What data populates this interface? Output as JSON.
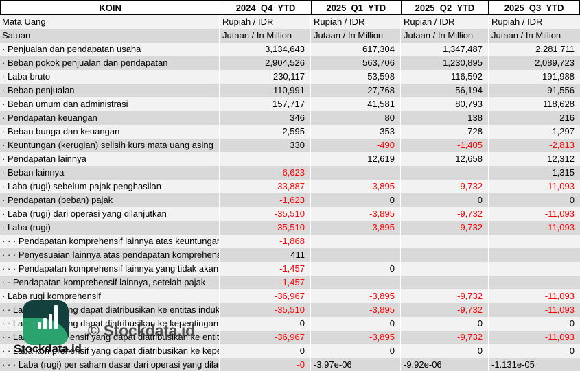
{
  "table": {
    "header": [
      "KOIN",
      "2024_Q4_YTD",
      "2025_Q1_YTD",
      "2025_Q2_YTD",
      "2025_Q3_YTD"
    ],
    "rows": [
      {
        "label": "Mata Uang",
        "type": "text",
        "cells": [
          "Rupiah / IDR",
          "Rupiah / IDR",
          "Rupiah / IDR",
          "Rupiah / IDR"
        ]
      },
      {
        "label": "Satuan",
        "type": "text",
        "cells": [
          "Jutaan / In Million",
          "Jutaan / In Million",
          "Jutaan / In Million",
          "Jutaan / In Million"
        ]
      },
      {
        "label": "· Penjualan dan pendapatan usaha",
        "cells": [
          "3,134,643",
          "617,304",
          "1,347,487",
          "2,281,711"
        ]
      },
      {
        "label": "· Beban pokok penjualan dan pendapatan",
        "cells": [
          "2,904,526",
          "563,706",
          "1,230,895",
          "2,089,723"
        ]
      },
      {
        "label": "· Laba bruto",
        "cells": [
          "230,117",
          "53,598",
          "116,592",
          "191,988"
        ]
      },
      {
        "label": "· Beban penjualan",
        "cells": [
          "110,991",
          "27,768",
          "56,194",
          "91,556"
        ]
      },
      {
        "label": "· Beban umum dan administrasi",
        "cells": [
          "157,717",
          "41,581",
          "80,793",
          "118,628"
        ]
      },
      {
        "label": "· Pendapatan keuangan",
        "cells": [
          "346",
          "80",
          "138",
          "216"
        ]
      },
      {
        "label": "· Beban bunga dan keuangan",
        "cells": [
          "2,595",
          "353",
          "728",
          "1,297"
        ]
      },
      {
        "label": "· Keuntungan (kerugian) selisih kurs mata uang asing",
        "cells": [
          "330",
          "-490",
          "-1,405",
          "-2,813"
        ],
        "red": [
          false,
          true,
          true,
          true
        ]
      },
      {
        "label": "· Pendapatan lainnya",
        "cells": [
          "",
          "12,619",
          "12,658",
          "12,312"
        ]
      },
      {
        "label": "· Beban lainnya",
        "cells": [
          "-6,623",
          "",
          "",
          "1,315"
        ],
        "red": [
          true,
          false,
          false,
          false
        ]
      },
      {
        "label": "· Laba (rugi) sebelum pajak penghasilan",
        "cells": [
          "-33,887",
          "-3,895",
          "-9,732",
          "-11,093"
        ],
        "red": [
          true,
          true,
          true,
          true
        ]
      },
      {
        "label": "· Pendapatan (beban) pajak",
        "cells": [
          "-1,623",
          "0",
          "0",
          "0"
        ],
        "red": [
          true,
          false,
          false,
          false
        ]
      },
      {
        "label": "· Laba (rugi) dari operasi yang dilanjutkan",
        "cells": [
          "-35,510",
          "-3,895",
          "-9,732",
          "-11,093"
        ],
        "red": [
          true,
          true,
          true,
          true
        ]
      },
      {
        "label": "· Laba (rugi)",
        "cells": [
          "-35,510",
          "-3,895",
          "-9,732",
          "-11,093"
        ],
        "red": [
          true,
          true,
          true,
          true
        ]
      },
      {
        "label": "· · · Pendapatan komprehensif lainnya atas keuntungan",
        "cells": [
          "-1,868",
          "",
          "",
          ""
        ],
        "red": [
          true,
          false,
          false,
          false
        ]
      },
      {
        "label": "· · · Penyesuaian lainnya atas pendapatan komprehensif",
        "cells": [
          "411",
          "",
          "",
          ""
        ]
      },
      {
        "label": "· · · Pendapatan komprehensif lainnya yang tidak akan",
        "cells": [
          "-1,457",
          "0",
          "",
          ""
        ],
        "red": [
          true,
          false,
          false,
          false
        ]
      },
      {
        "label": "· · Pendapatan komprehensif lainnya, setelah pajak",
        "cells": [
          "-1,457",
          "",
          "",
          ""
        ],
        "red": [
          true,
          false,
          false,
          false
        ]
      },
      {
        "label": "· Laba rugi komprehensif",
        "cells": [
          "-36,967",
          "-3,895",
          "-9,732",
          "-11,093"
        ],
        "red": [
          true,
          true,
          true,
          true
        ]
      },
      {
        "label": "· · Laba (rugi) yang dapat diatribusikan ke entitas induk",
        "cells": [
          "-35,510",
          "-3,895",
          "-9,732",
          "-11,093"
        ],
        "red": [
          true,
          true,
          true,
          true
        ]
      },
      {
        "label": "· · Laba (rugi) yang dapat diatribusikan ke kepentingan",
        "cells": [
          "0",
          "0",
          "0",
          "0"
        ]
      },
      {
        "label": "· · Laba komprehensif yang dapat diatribusikan ke entitas induk",
        "cells": [
          "-36,967",
          "-3,895",
          "-9,732",
          "-11,093"
        ],
        "red": [
          true,
          true,
          true,
          true
        ]
      },
      {
        "label": "· · Laba komprehensif yang dapat diatribusikan ke kepentingan",
        "cells": [
          "0",
          "0",
          "0",
          "0"
        ]
      },
      {
        "label": "· · · Laba (rugi) per saham dasar dari operasi yang dilanjutkan",
        "cells": [
          "-0",
          "-3.97e-06",
          "-9.92e-06",
          "-1.131e-05"
        ],
        "red": [
          true,
          false,
          false,
          false
        ],
        "aligns": [
          "right",
          "left",
          "left",
          "left"
        ]
      }
    ]
  },
  "watermark": {
    "brand": "Stockdata.id",
    "copyright": "© Stockdata.id"
  },
  "colors": {
    "negative_value": "#ff0000",
    "row_band_light": "#f2f2f2",
    "row_band_dark": "#d9d9d9",
    "logo_dark_teal": "#12403c",
    "logo_green": "#2aa36f"
  }
}
